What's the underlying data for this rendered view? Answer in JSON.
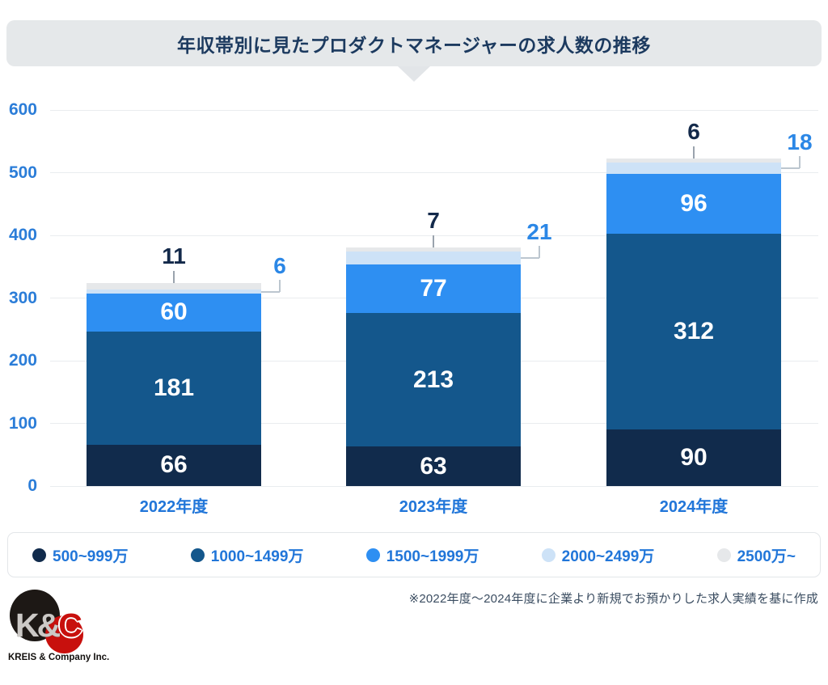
{
  "title": {
    "text": "年収帯別に見たプロダクトマネージャーの求人数の推移"
  },
  "chart_data": {
    "type": "stacked-bar",
    "title": "年収帯別に見たプロダクトマネージャーの求人数の推移",
    "categories": [
      "2022年度",
      "2023年度",
      "2024年度"
    ],
    "series": [
      {
        "name": "500~999万",
        "color": "#112b4c",
        "label_position": "inside",
        "values": [
          66,
          63,
          90
        ]
      },
      {
        "name": "1000~1499万",
        "color": "#14578c",
        "label_position": "inside",
        "values": [
          181,
          213,
          312
        ]
      },
      {
        "name": "1500~1999万",
        "color": "#2e8ff2",
        "label_position": "inside",
        "values": [
          60,
          77,
          96
        ]
      },
      {
        "name": "2000~2499万",
        "color": "#cde2f7",
        "label_position": "outside-right",
        "values": [
          6,
          21,
          18
        ]
      },
      {
        "name": "2500万~",
        "color": "#e6e8ea",
        "label_position": "outside-top",
        "values": [
          11,
          7,
          6
        ]
      }
    ],
    "y_ticks": [
      0,
      100,
      200,
      300,
      400,
      500,
      600
    ],
    "ylim": [
      0,
      600
    ],
    "grid": "horizontal",
    "legend_position": "bottom"
  },
  "footnote": {
    "text": "※2022年度〜2024年度に企業より新規でお預かりした求人実績を基に作成"
  },
  "logo": {
    "monogram_left": "K&",
    "monogram_right": "C",
    "company": "KREIS & Company Inc."
  },
  "colors": {
    "banner_bg": "#e5e8ea",
    "title_text": "#1c3a5f",
    "axis_text": "#2b7dd8",
    "inside_value_text": "#ffffff",
    "top_value_text": "#13294a",
    "right_value_text": "#2b87e6",
    "gridline": "#e9ecef",
    "footnote_text": "#3b4d61",
    "logo_red": "#c8100d",
    "logo_black": "#1d1815"
  }
}
